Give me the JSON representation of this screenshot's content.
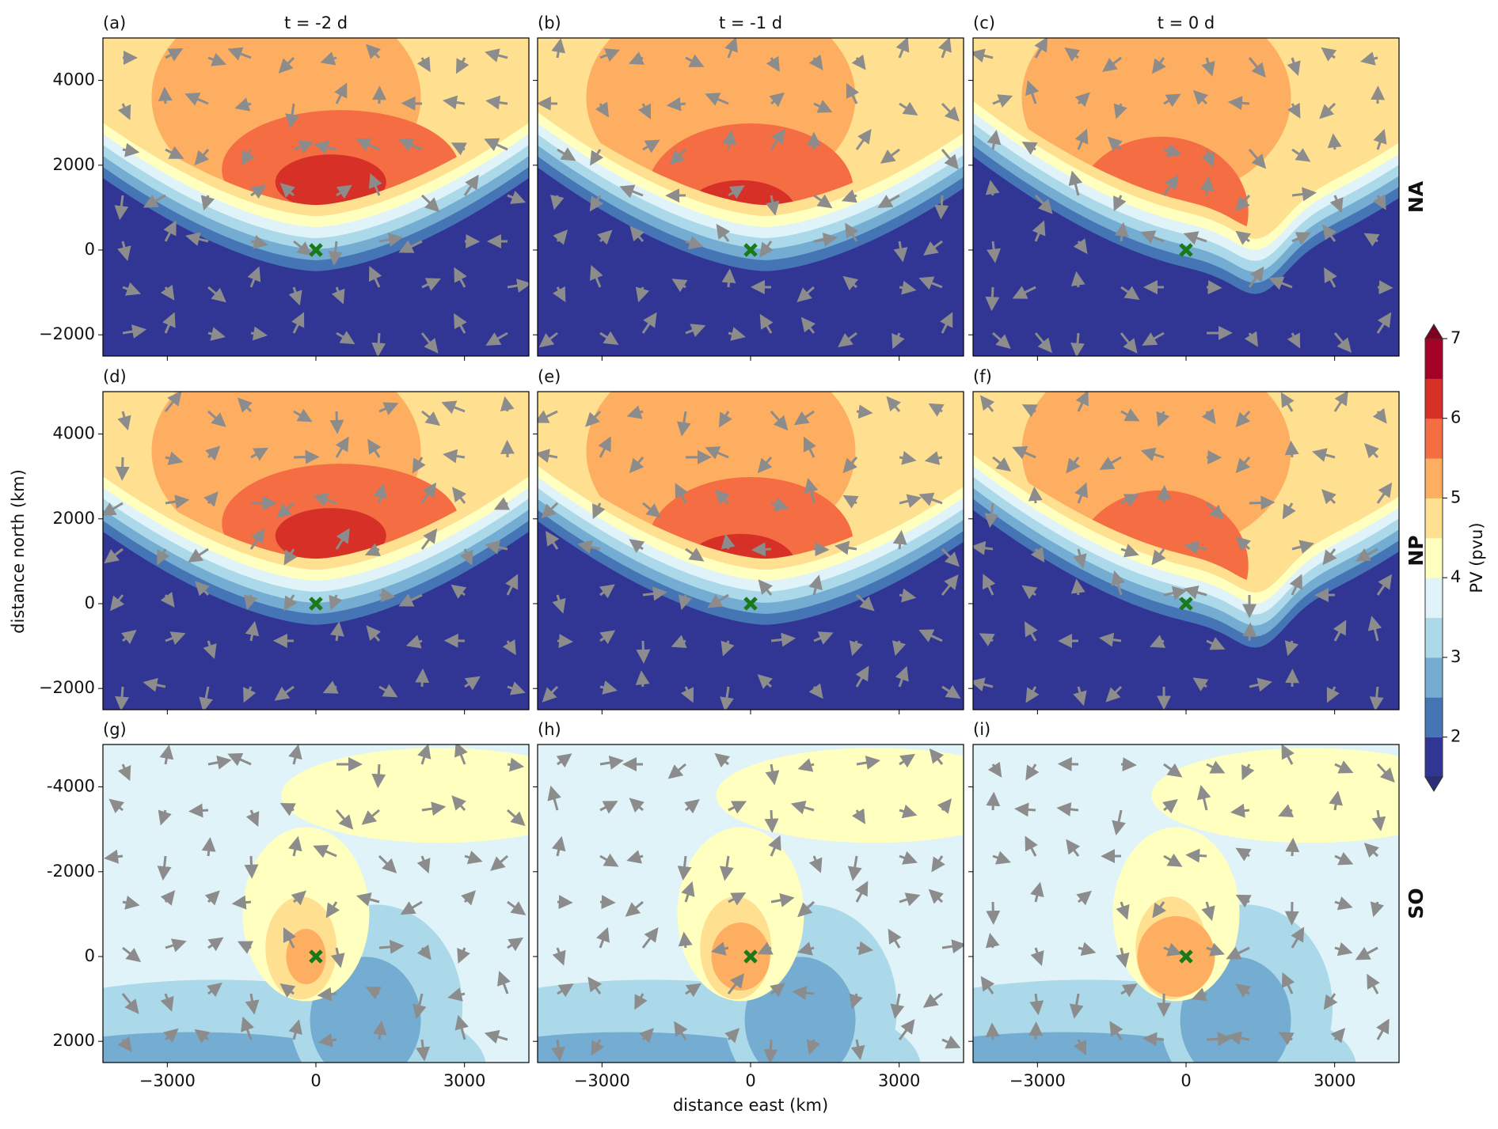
{
  "chart_data": {
    "type": "contour",
    "xlabel": "distance east (km)",
    "ylabel": "distance north (km)",
    "xlim": [
      -4300,
      4300
    ],
    "xticks": [
      {
        "value": -3000,
        "label": "−3000"
      },
      0,
      3000
    ],
    "columns": [
      {
        "title": "t = -2 d"
      },
      {
        "title": "t = -1 d"
      },
      {
        "title": "t = 0 d"
      }
    ],
    "rows": [
      {
        "label": "NA",
        "ylim": [
          -2500,
          5000
        ],
        "yticks": [
          {
            "value": -2000,
            "label": "−2000"
          },
          0,
          2000,
          4000
        ]
      },
      {
        "label": "NP",
        "ylim": [
          -2500,
          5000
        ],
        "yticks": [
          {
            "value": -2000,
            "label": "−2000"
          },
          0,
          2000,
          4000
        ]
      },
      {
        "label": "SO",
        "ylim": [
          2500,
          -5000
        ],
        "yticks": [
          2000,
          0,
          -2000,
          -4000
        ]
      }
    ],
    "panels": [
      "(a)",
      "(b)",
      "(c)",
      "(d)",
      "(e)",
      "(f)",
      "(g)",
      "(h)",
      "(i)"
    ],
    "colorbar_label": "PV (pvu)",
    "colorbar_lim": [
      1.5,
      7
    ],
    "colorbar_ticks": [
      2,
      3,
      4,
      5,
      6,
      7
    ],
    "colors": [
      "#313695",
      "#4575b4",
      "#74add1",
      "#abd9e9",
      "#e0f3f8",
      "#ffffbf",
      "#fee090",
      "#fdae61",
      "#f46d43",
      "#d73027",
      "#a50026"
    ]
  }
}
